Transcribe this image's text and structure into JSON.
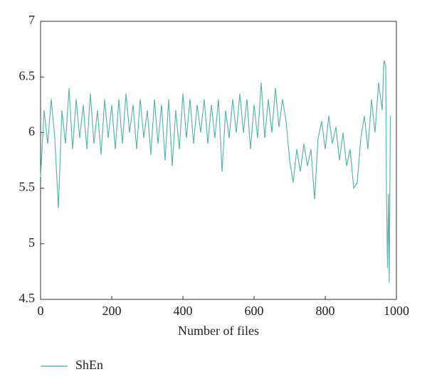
{
  "chart_data": {
    "type": "line",
    "x_label": "Number of files",
    "xlim": [
      0,
      1000
    ],
    "xticks": [
      0,
      200,
      400,
      600,
      800,
      1000
    ],
    "ylim": [
      4.5,
      7
    ],
    "yticks": [
      4.5,
      5,
      5.5,
      6,
      6.5,
      7
    ],
    "x": [
      0,
      10,
      20,
      30,
      40,
      50,
      60,
      70,
      80,
      90,
      100,
      110,
      120,
      130,
      140,
      150,
      160,
      170,
      180,
      190,
      200,
      210,
      220,
      230,
      240,
      250,
      260,
      270,
      280,
      290,
      300,
      310,
      320,
      330,
      340,
      350,
      360,
      370,
      380,
      390,
      400,
      410,
      420,
      430,
      440,
      450,
      460,
      470,
      480,
      490,
      500,
      510,
      520,
      530,
      540,
      550,
      560,
      570,
      580,
      590,
      600,
      610,
      620,
      630,
      640,
      650,
      660,
      670,
      680,
      690,
      700,
      710,
      720,
      730,
      740,
      750,
      760,
      770,
      780,
      790,
      800,
      810,
      820,
      830,
      840,
      850,
      860,
      870,
      880,
      890,
      900,
      910,
      920,
      930,
      940,
      950,
      960,
      965,
      970,
      972,
      975,
      978,
      980,
      983
    ],
    "series": [
      {
        "name": "ShEn",
        "color": "#5bb5b0",
        "values": [
          5.6,
          6.2,
          5.9,
          6.3,
          5.95,
          5.32,
          6.2,
          5.9,
          6.4,
          5.85,
          6.3,
          5.95,
          6.25,
          5.85,
          6.35,
          5.9,
          6.2,
          5.8,
          6.3,
          5.95,
          6.25,
          5.85,
          6.3,
          5.9,
          6.35,
          6.0,
          6.25,
          5.85,
          6.3,
          5.95,
          6.2,
          5.8,
          6.3,
          5.9,
          6.25,
          5.75,
          6.3,
          5.7,
          6.2,
          5.85,
          6.35,
          5.95,
          6.3,
          5.9,
          6.25,
          6.0,
          6.3,
          5.9,
          6.25,
          5.95,
          6.3,
          5.65,
          6.2,
          5.95,
          6.3,
          6.0,
          6.35,
          6.0,
          6.3,
          5.85,
          6.25,
          5.95,
          6.45,
          5.95,
          6.3,
          6.0,
          6.4,
          6.05,
          6.3,
          6.1,
          5.75,
          5.55,
          5.85,
          5.65,
          5.9,
          5.7,
          5.85,
          5.4,
          5.95,
          6.1,
          5.85,
          6.15,
          5.9,
          6.05,
          5.75,
          6.0,
          5.7,
          5.85,
          5.5,
          5.55,
          5.95,
          6.15,
          5.85,
          6.3,
          6.0,
          6.45,
          6.2,
          6.65,
          6.6,
          5.5,
          4.78,
          5.45,
          4.65,
          6.15
        ]
      }
    ]
  }
}
